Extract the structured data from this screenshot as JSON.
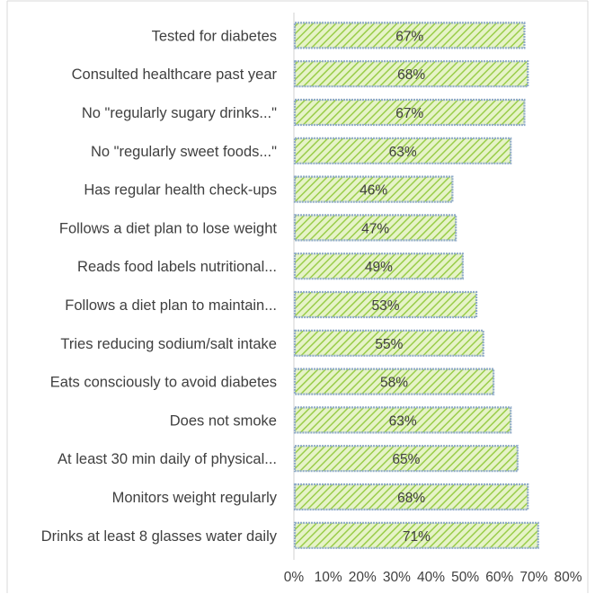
{
  "chart_data": {
    "type": "bar",
    "orientation": "horizontal",
    "categories": [
      "Tested for diabetes",
      "Consulted healthcare past year",
      "No \"regularly sugary drinks...\"",
      "No \"regularly sweet foods...\"",
      "Has regular health check-ups",
      "Follows a diet plan to lose weight",
      "Reads food labels nutritional...",
      "Follows a diet plan to maintain...",
      "Tries reducing sodium/salt intake",
      "Eats consciously to avoid diabetes",
      "Does not smoke",
      "At least 30 min daily of physical...",
      "Monitors weight regularly",
      "Drinks at least 8 glasses water daily"
    ],
    "values": [
      67,
      68,
      67,
      63,
      46,
      47,
      49,
      53,
      55,
      58,
      63,
      65,
      68,
      71
    ],
    "data_labels": [
      "67%",
      "68%",
      "67%",
      "63%",
      "46%",
      "47%",
      "49%",
      "53%",
      "55%",
      "58%",
      "63%",
      "65%",
      "68%",
      "71%"
    ],
    "x_ticks": [
      "0%",
      "10%",
      "20%",
      "30%",
      "40%",
      "50%",
      "60%",
      "70%",
      "80%"
    ],
    "xlim": [
      0,
      80
    ],
    "title": "",
    "xlabel": "",
    "ylabel": "",
    "grid": false,
    "legend": "none",
    "colors": {
      "bar_fill_base": "#e6f3c8",
      "bar_hatch": "#9acd4a",
      "bar_border": "#8faac8",
      "axis": "#d9d9d9",
      "text": "#404040"
    }
  }
}
